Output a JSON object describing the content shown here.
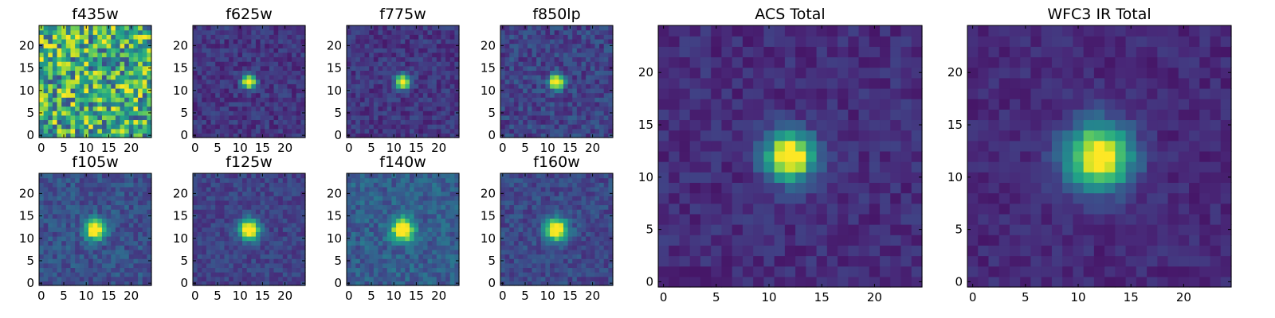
{
  "chart_data": [
    {
      "type": "heatmap",
      "title": "f435w",
      "xlim": [
        0,
        25
      ],
      "ylim": [
        0,
        25
      ],
      "xticks": [
        "0",
        "5",
        "10",
        "15",
        "20"
      ],
      "yticks": [
        "0",
        "5",
        "10",
        "15",
        "20"
      ],
      "colormap": "viridis",
      "source": {
        "kind": "noise",
        "seed": 11,
        "peak": 0,
        "sigma": 1,
        "bg": 0.62,
        "noise": 0.32
      }
    },
    {
      "type": "heatmap",
      "title": "f625w",
      "xlim": [
        0,
        25
      ],
      "ylim": [
        0,
        25
      ],
      "xticks": [
        "0",
        "5",
        "10",
        "15",
        "20"
      ],
      "yticks": [
        "0",
        "5",
        "10",
        "15",
        "20"
      ],
      "colormap": "viridis",
      "source": {
        "kind": "gauss",
        "seed": 23,
        "peak": 1.0,
        "sigma": 1.05,
        "bg": 0.16,
        "noise": 0.09
      }
    },
    {
      "type": "heatmap",
      "title": "f775w",
      "xlim": [
        0,
        25
      ],
      "ylim": [
        0,
        25
      ],
      "xticks": [
        "0",
        "5",
        "10",
        "15",
        "20"
      ],
      "yticks": [
        "0",
        "5",
        "10",
        "15",
        "20"
      ],
      "colormap": "viridis",
      "source": {
        "kind": "gauss",
        "seed": 37,
        "peak": 1.0,
        "sigma": 1.1,
        "bg": 0.16,
        "noise": 0.09
      }
    },
    {
      "type": "heatmap",
      "title": "f850lp",
      "xlim": [
        0,
        25
      ],
      "ylim": [
        0,
        25
      ],
      "xticks": [
        "0",
        "5",
        "10",
        "15",
        "20"
      ],
      "yticks": [
        "0",
        "5",
        "10",
        "15",
        "20"
      ],
      "colormap": "viridis",
      "source": {
        "kind": "gauss",
        "seed": 41,
        "peak": 1.0,
        "sigma": 1.15,
        "bg": 0.2,
        "noise": 0.11
      }
    },
    {
      "type": "heatmap",
      "title": "f105w",
      "xlim": [
        0,
        25
      ],
      "ylim": [
        0,
        25
      ],
      "xticks": [
        "0",
        "5",
        "10",
        "15",
        "20"
      ],
      "yticks": [
        "0",
        "5",
        "10",
        "15",
        "20"
      ],
      "colormap": "viridis",
      "source": {
        "kind": "gauss",
        "seed": 53,
        "peak": 1.0,
        "sigma": 1.5,
        "bg": 0.25,
        "noise": 0.1
      }
    },
    {
      "type": "heatmap",
      "title": "f125w",
      "xlim": [
        0,
        25
      ],
      "ylim": [
        0,
        25
      ],
      "xticks": [
        "0",
        "5",
        "10",
        "15",
        "20"
      ],
      "yticks": [
        "0",
        "5",
        "10",
        "15",
        "20"
      ],
      "colormap": "viridis",
      "source": {
        "kind": "gauss",
        "seed": 67,
        "peak": 1.0,
        "sigma": 1.55,
        "bg": 0.2,
        "noise": 0.08
      }
    },
    {
      "type": "heatmap",
      "title": "f140w",
      "xlim": [
        0,
        25
      ],
      "ylim": [
        0,
        25
      ],
      "xticks": [
        "0",
        "5",
        "10",
        "15",
        "20"
      ],
      "yticks": [
        "0",
        "5",
        "10",
        "15",
        "20"
      ],
      "colormap": "viridis",
      "source": {
        "kind": "gauss",
        "seed": 79,
        "peak": 1.0,
        "sigma": 1.65,
        "bg": 0.3,
        "noise": 0.11
      }
    },
    {
      "type": "heatmap",
      "title": "f160w",
      "xlim": [
        0,
        25
      ],
      "ylim": [
        0,
        25
      ],
      "xticks": [
        "0",
        "5",
        "10",
        "15",
        "20"
      ],
      "yticks": [
        "0",
        "5",
        "10",
        "15",
        "20"
      ],
      "colormap": "viridis",
      "source": {
        "kind": "gauss",
        "seed": 83,
        "peak": 1.0,
        "sigma": 1.7,
        "bg": 0.22,
        "noise": 0.09
      }
    },
    {
      "type": "heatmap",
      "title": "ACS Total",
      "xlim": [
        0,
        25
      ],
      "ylim": [
        0,
        25
      ],
      "xticks": [
        "0",
        "5",
        "10",
        "15",
        "20"
      ],
      "yticks": [
        "0",
        "5",
        "10",
        "15",
        "20"
      ],
      "colormap": "viridis",
      "source": {
        "kind": "gauss",
        "seed": 97,
        "peak": 1.05,
        "sigma": 1.55,
        "bg": 0.13,
        "noise": 0.07
      }
    },
    {
      "type": "heatmap",
      "title": "WFC3 IR Total",
      "xlim": [
        0,
        25
      ],
      "ylim": [
        0,
        25
      ],
      "xticks": [
        "0",
        "5",
        "10",
        "15",
        "20"
      ],
      "yticks": [
        "0",
        "5",
        "10",
        "15",
        "20"
      ],
      "colormap": "viridis",
      "source": {
        "kind": "gauss",
        "seed": 101,
        "peak": 1.0,
        "sigma": 2.1,
        "bg": 0.12,
        "noise": 0.06
      }
    }
  ],
  "center": [
    12.5,
    12.5
  ],
  "grid_size": 25,
  "colors": {
    "viridis": [
      "#440154",
      "#482878",
      "#3e4989",
      "#31688e",
      "#26828e",
      "#1f9e89",
      "#35b779",
      "#6ece58",
      "#b5de2b",
      "#fde725"
    ],
    "axes": "#000000"
  }
}
